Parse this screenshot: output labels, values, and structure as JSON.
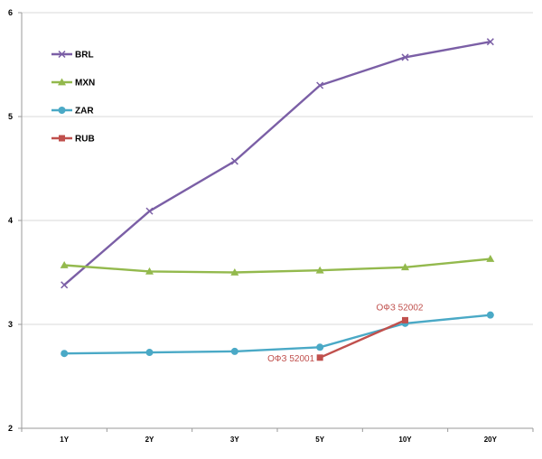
{
  "chart_data": {
    "type": "line",
    "title": "",
    "xlabel": "",
    "ylabel": "",
    "categories": [
      "1Y",
      "2Y",
      "3Y",
      "5Y",
      "10Y",
      "20Y"
    ],
    "ylim": [
      2,
      6
    ],
    "yticks": [
      "2",
      "3",
      "4",
      "5",
      "6"
    ],
    "grid": "horizontal",
    "legend_position": "top-left",
    "series": [
      {
        "name": "BRL",
        "color": "#7b5fa6",
        "marker": "x",
        "values": [
          3.38,
          4.09,
          4.57,
          5.3,
          5.57,
          5.72
        ]
      },
      {
        "name": "MXN",
        "color": "#93b94d",
        "marker": "triangle",
        "values": [
          3.57,
          3.51,
          3.5,
          3.52,
          3.55,
          3.63
        ]
      },
      {
        "name": "ZAR",
        "color": "#4aa9c6",
        "marker": "circle",
        "values": [
          2.72,
          2.73,
          2.74,
          2.78,
          3.01,
          3.09
        ]
      },
      {
        "name": "RUB",
        "color": "#c0504d",
        "marker": "square",
        "values": [
          null,
          null,
          null,
          2.68,
          3.04,
          null
        ]
      }
    ],
    "annotations": [
      {
        "text": "ОФЗ 52001",
        "category": "5Y",
        "value": 2.68,
        "anchor": "left",
        "color": "#c0504d"
      },
      {
        "text": "ОФЗ 52002",
        "category": "10Y",
        "value": 3.04,
        "anchor": "above",
        "color": "#c0504d"
      }
    ]
  }
}
